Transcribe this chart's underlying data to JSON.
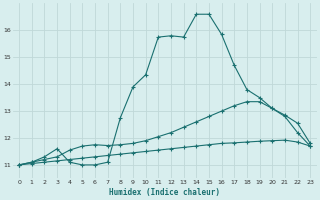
{
  "xlabel": "Humidex (Indice chaleur)",
  "bg_color": "#d8eeee",
  "grid_color": "#c0d8d8",
  "line_color": "#1a7070",
  "xlim": [
    -0.5,
    23.5
  ],
  "ylim": [
    10.5,
    17.0
  ],
  "yticks": [
    11,
    12,
    13,
    14,
    15,
    16
  ],
  "xticks": [
    0,
    1,
    2,
    3,
    4,
    5,
    6,
    7,
    8,
    9,
    10,
    11,
    12,
    13,
    14,
    15,
    16,
    17,
    18,
    19,
    20,
    21,
    22,
    23
  ],
  "line1_x": [
    0,
    1,
    2,
    3,
    4,
    5,
    6,
    7,
    8,
    9,
    10,
    11,
    12,
    13,
    14,
    15,
    16,
    17,
    18,
    19,
    20,
    21,
    22,
    23
  ],
  "line1_y": [
    11.0,
    11.05,
    11.1,
    11.15,
    11.2,
    11.25,
    11.3,
    11.35,
    11.4,
    11.45,
    11.5,
    11.55,
    11.6,
    11.65,
    11.7,
    11.75,
    11.8,
    11.82,
    11.85,
    11.88,
    11.9,
    11.92,
    11.85,
    11.7
  ],
  "line2_x": [
    0,
    1,
    2,
    3,
    4,
    5,
    6,
    7,
    8,
    9,
    10,
    11,
    12,
    13,
    14,
    15,
    16,
    17,
    18,
    19,
    20,
    21,
    22,
    23
  ],
  "line2_y": [
    11.0,
    11.1,
    11.2,
    11.3,
    11.55,
    11.7,
    11.75,
    11.72,
    11.75,
    11.8,
    11.9,
    12.05,
    12.2,
    12.4,
    12.6,
    12.8,
    13.0,
    13.2,
    13.35,
    13.35,
    13.1,
    12.85,
    12.55,
    11.8
  ],
  "line3_x": [
    0,
    1,
    2,
    3,
    4,
    5,
    6,
    7,
    8,
    9,
    10,
    11,
    12,
    13,
    14,
    15,
    16,
    17,
    18,
    19,
    20,
    21,
    22,
    23
  ],
  "line3_y": [
    11.0,
    11.1,
    11.3,
    11.6,
    11.1,
    11.0,
    11.0,
    11.1,
    12.75,
    13.9,
    14.35,
    15.75,
    15.8,
    15.75,
    16.6,
    16.6,
    15.85,
    14.7,
    13.8,
    13.5,
    13.1,
    12.8,
    12.2,
    11.7
  ]
}
